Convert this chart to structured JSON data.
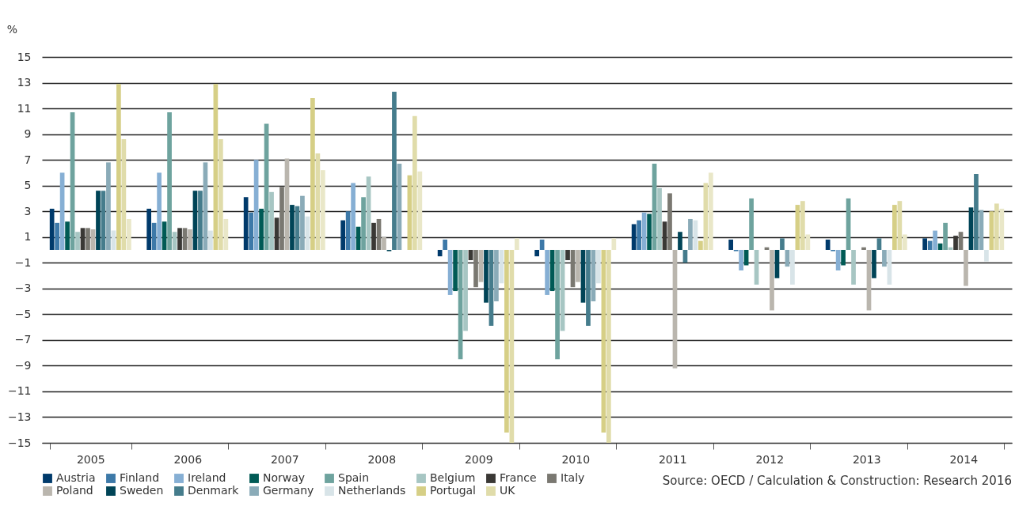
{
  "chart_data": {
    "type": "bar",
    "ylabel": "%",
    "categories": [
      "2005",
      "2006",
      "2007",
      "2008",
      "2009",
      "2010",
      "2011",
      "2012",
      "2013",
      "2014"
    ],
    "ylim": [
      -15,
      15
    ],
    "yticks": [
      -15,
      -13,
      -11,
      -9,
      -7,
      -5,
      -3,
      -1,
      1,
      3,
      5,
      7,
      9,
      11,
      13,
      15
    ],
    "grid": "y",
    "legend": "bottom",
    "annotations": [
      "Source: OECD / Calculation & Construction: Research 2016"
    ],
    "series": [
      {
        "name": "Austria",
        "color": "#003a6b",
        "values": [
          3.2,
          3.2,
          4.1,
          2.3,
          -0.5,
          -0.5,
          2.0,
          0.8,
          0.8,
          0.9
        ]
      },
      {
        "name": "Finland",
        "color": "#3d79a8",
        "values": [
          2.1,
          2.1,
          2.9,
          3.0,
          0.8,
          0.8,
          2.3,
          -0.1,
          -0.1,
          0.7
        ]
      },
      {
        "name": "Ireland",
        "color": "#86afd4",
        "values": [
          6.0,
          6.0,
          7.0,
          5.2,
          -3.5,
          -3.5,
          2.9,
          -1.6,
          -1.6,
          1.5
        ]
      },
      {
        "name": "Norway",
        "color": "#005a55",
        "values": [
          2.2,
          2.2,
          3.2,
          1.8,
          -3.2,
          -3.2,
          2.8,
          -1.2,
          -1.2,
          0.5
        ]
      },
      {
        "name": "Spain",
        "color": "#6ea39e",
        "values": [
          10.7,
          10.7,
          9.8,
          4.1,
          -8.5,
          -8.5,
          6.7,
          4.0,
          4.0,
          2.1
        ]
      },
      {
        "name": "Belgium",
        "color": "#a7c6c3",
        "values": [
          1.4,
          1.4,
          4.5,
          5.7,
          -6.3,
          -6.3,
          4.8,
          -2.7,
          -2.7,
          0.2
        ]
      },
      {
        "name": "France",
        "color": "#3a3835",
        "values": [
          1.7,
          1.7,
          2.5,
          2.1,
          -0.8,
          -0.8,
          2.2,
          null,
          null,
          1.1
        ]
      },
      {
        "name": "Italy",
        "color": "#7a7871",
        "values": [
          1.7,
          1.7,
          4.9,
          2.4,
          -2.9,
          -2.9,
          4.4,
          0.2,
          0.2,
          1.4
        ]
      },
      {
        "name": "Poland",
        "color": "#bab6ae",
        "values": [
          1.6,
          1.6,
          7.1,
          1.0,
          -2.5,
          -2.5,
          -9.2,
          -4.7,
          -4.7,
          -2.8
        ]
      },
      {
        "name": "Sweden",
        "color": "#004457",
        "values": [
          4.6,
          4.6,
          3.5,
          -0.1,
          -4.1,
          -4.1,
          1.4,
          -2.2,
          -2.2,
          3.3
        ]
      },
      {
        "name": "Denmark",
        "color": "#457c8c",
        "values": [
          4.6,
          4.6,
          3.4,
          12.3,
          -5.9,
          -5.9,
          -1.0,
          0.9,
          0.9,
          5.9
        ]
      },
      {
        "name": "Germany",
        "color": "#8aabb8",
        "values": [
          6.8,
          6.8,
          4.2,
          6.7,
          -4.0,
          -4.0,
          2.4,
          -1.3,
          -1.3,
          3.1
        ]
      },
      {
        "name": "Netherlands",
        "color": "#d8e4e8",
        "values": [
          1.5,
          1.5,
          2.6,
          null,
          -2.6,
          -2.6,
          2.3,
          -2.7,
          -2.7,
          -0.9
        ]
      },
      {
        "name": "Portugal",
        "color": "#d6cf86",
        "values": [
          12.9,
          12.9,
          11.8,
          5.8,
          -14.2,
          -14.2,
          0.7,
          3.5,
          3.5,
          3.0
        ]
      },
      {
        "name": "UK",
        "color": "#e0dcaa",
        "values": [
          8.6,
          8.6,
          7.5,
          10.4,
          -15,
          -15,
          5.2,
          3.8,
          3.8,
          3.6
        ]
      },
      {
        "color": "#e9e7c8",
        "values": [
          2.4,
          2.4,
          6.2,
          6.1,
          0.9,
          0.9,
          6.0,
          1.2,
          1.2,
          3.2
        ]
      }
    ]
  }
}
